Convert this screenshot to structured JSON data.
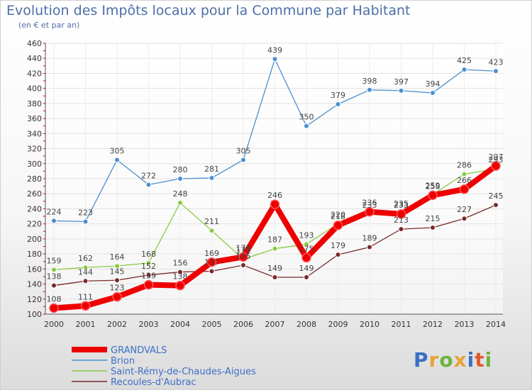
{
  "title": "Evolution des Impôts locaux pour la Commune par Habitant",
  "subtitle": "(en € et par an)",
  "logo": {
    "text": "Proxiti",
    "colors": [
      "#3b6fc7",
      "#e8a23a",
      "#6db33f",
      "#e8a23a",
      "#3b6fc7",
      "#e05a2a",
      "#6db33f"
    ]
  },
  "chart_data": {
    "type": "line",
    "x": [
      "2000",
      "2001",
      "2002",
      "2003",
      "2004",
      "2005",
      "2006",
      "2007",
      "2008",
      "2009",
      "2010",
      "2011",
      "2012",
      "2013",
      "2014"
    ],
    "ylim": [
      100,
      460
    ],
    "yticks": [
      100,
      120,
      140,
      160,
      180,
      200,
      220,
      240,
      260,
      280,
      300,
      320,
      340,
      360,
      380,
      400,
      420,
      440,
      460
    ],
    "grid": true,
    "legend_position": "bottom-left",
    "series": [
      {
        "name": "GRANDVALS",
        "color": "#ee0000",
        "values": [
          108,
          111,
          123,
          139,
          138,
          169,
          176,
          246,
          175,
          218,
          236,
          233,
          258,
          266,
          297
        ],
        "labels": [
          "108",
          "111",
          "123",
          "139",
          "138",
          "169",
          "176",
          "246",
          "175",
          "218",
          "236",
          "233",
          "258",
          "266",
          "297"
        ],
        "bold": true
      },
      {
        "name": "Brion",
        "color": "#4a8fd0",
        "values": [
          224,
          223,
          305,
          272,
          280,
          281,
          305,
          439,
          350,
          379,
          398,
          397,
          394,
          425,
          423
        ],
        "labels": [
          "224",
          "223",
          "305",
          "272",
          "280",
          "281",
          "305",
          "439",
          "350",
          "379",
          "398",
          "397",
          "394",
          "425",
          "423"
        ]
      },
      {
        "name": "Saint-Rémy-de-Chaudes-Aigues",
        "color": "#88cc44",
        "values": [
          159,
          162,
          164,
          168,
          248,
          211,
          173,
          187,
          193,
          220,
          233,
          235,
          259,
          286,
          293
        ],
        "labels": [
          "159",
          "162",
          "164",
          "168",
          "248",
          "211",
          "173",
          "187",
          "193",
          "220",
          "233",
          "235",
          "259",
          "286",
          "293"
        ]
      },
      {
        "name": "Recoules-d'Aubrac",
        "color": "#7a2a2a",
        "values": [
          138,
          144,
          145,
          152,
          156,
          157,
          165,
          149,
          149,
          179,
          189,
          213,
          215,
          227,
          245
        ],
        "labels": [
          "138",
          "144",
          "145",
          "152",
          "156",
          "157",
          "165",
          "149",
          "149",
          "179",
          "189",
          "213",
          "215",
          "227",
          "245"
        ]
      }
    ]
  }
}
